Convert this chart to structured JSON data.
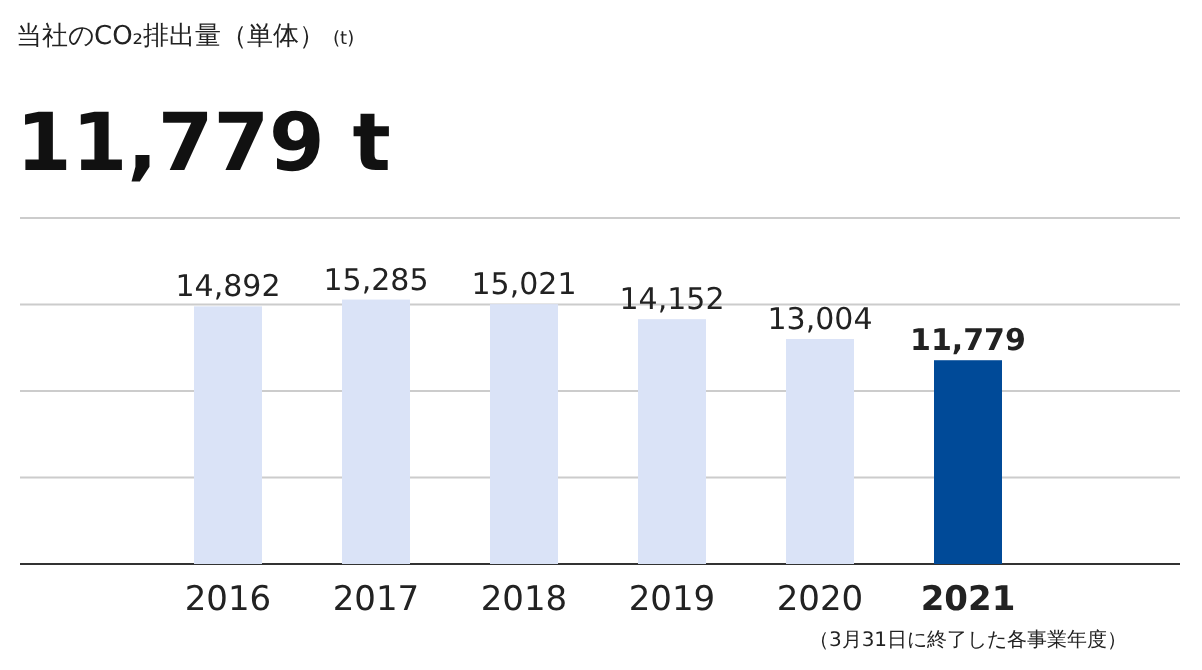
{
  "chart_data": {
    "type": "bar",
    "title": "当社のCO₂排出量（単体）",
    "legend_title": "(t)",
    "subtitle": "11,779 t",
    "categories": [
      "2016",
      "2017",
      "2018",
      "2019",
      "2020",
      "2021"
    ],
    "values": [
      14892,
      15285,
      15021,
      14152,
      13004,
      11779
    ],
    "colors": [
      "#dae3f7",
      "#dae3f7",
      "#dae3f7",
      "#dae3f7",
      "#dae3f7",
      "#004a98"
    ],
    "value_labels": [
      "14,892",
      "15,285",
      "15,021",
      "14,152",
      "13,004",
      "11,779"
    ],
    "ylim": [
      0,
      20000
    ],
    "yticks": [
      {
        "value": 0,
        "label": null
      },
      {
        "value": 5000,
        "label": null
      },
      {
        "value": 10000,
        "label": null
      },
      {
        "value": 15000,
        "label": null
      },
      {
        "value": 20000,
        "label": null
      }
    ],
    "grid": "y",
    "tick_labels": "x",
    "annotations": [
      "（3月31日に終了した各事業年度）"
    ]
  }
}
